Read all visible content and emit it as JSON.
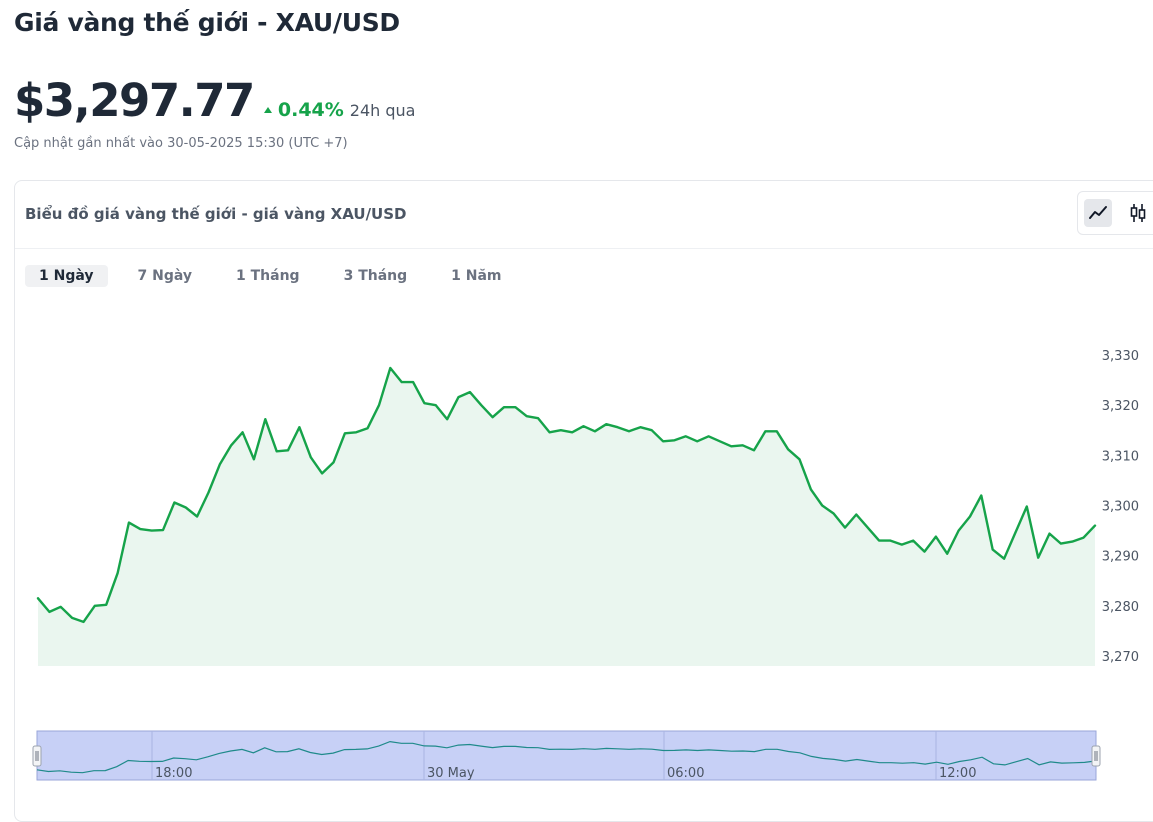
{
  "page": {
    "title": "Giá vàng thế giới - XAU/USD",
    "price": "$3,297.77",
    "change_pct": "0.44%",
    "change_period": "24h qua",
    "updated": "Cập nhật gần nhất vào 30-05-2025 15:30 (UTC +7)"
  },
  "card": {
    "title": "Biểu đồ giá vàng thế giới - giá vàng XAU/USD",
    "view_buttons": [
      {
        "icon": "line-chart-icon",
        "active": true
      },
      {
        "icon": "candlestick-icon",
        "active": false
      }
    ],
    "tabs": [
      {
        "label": "1 Ngày",
        "active": true
      },
      {
        "label": "7 Ngày",
        "active": false
      },
      {
        "label": "1 Tháng",
        "active": false
      },
      {
        "label": "3 Tháng",
        "active": false
      },
      {
        "label": "1 Năm",
        "active": false
      }
    ]
  },
  "colors": {
    "line": "#16a34a",
    "area": "#eaf6ef",
    "navigator_bg": "#c7d0f6",
    "navigator_line": "#1f8a8a",
    "positive": "#16a34a"
  },
  "chart_data": {
    "type": "area",
    "title": "",
    "xlabel": "",
    "ylabel": "",
    "ylim": [
      3270,
      3330
    ],
    "yticks": [
      3270,
      3280,
      3290,
      3300,
      3310,
      3320,
      3330
    ],
    "ytick_labels": [
      "3,270",
      "3,280",
      "3,290",
      "3,300",
      "3,310",
      "3,320",
      "3,330"
    ],
    "navigator_ticks": [
      "18:00",
      "30 May",
      "06:00",
      "12:00"
    ],
    "grid": false,
    "series": [
      {
        "values": [
          3281.7,
          3279.0,
          3280.0,
          3277.8,
          3277.0,
          3280.2,
          3280.4,
          3286.7,
          3296.8,
          3295.5,
          3295.2,
          3295.3,
          3300.8,
          3299.8,
          3298.0,
          3302.8,
          3308.4,
          3312.2,
          3314.8,
          3309.4,
          3317.4,
          3311.0,
          3311.2,
          3315.8,
          3309.8,
          3306.6,
          3308.8,
          3314.6,
          3314.8,
          3315.6,
          3320.2,
          3327.6,
          3324.8,
          3324.8,
          3320.6,
          3320.2,
          3317.4,
          3321.8,
          3322.8,
          3320.2,
          3317.8,
          3319.8,
          3319.8,
          3318.0,
          3317.6,
          3314.8,
          3315.2,
          3314.8,
          3316.0,
          3315.0,
          3316.4,
          3315.8,
          3315.0,
          3315.8,
          3315.2,
          3313.0,
          3313.2,
          3314.0,
          3313.0,
          3314.0,
          3313.0,
          3312.0,
          3312.2,
          3311.2,
          3315.0,
          3315.0,
          3311.4,
          3309.4,
          3303.4,
          3300.2,
          3298.6,
          3295.8,
          3298.4,
          3295.8,
          3293.2,
          3293.2,
          3292.4,
          3293.2,
          3291.0,
          3294.0,
          3290.6,
          3295.2,
          3298.0,
          3302.2,
          3291.4,
          3289.6,
          3294.8,
          3300.0,
          3289.8,
          3294.6,
          3292.6,
          3293.0,
          3293.8,
          3296.2
        ]
      }
    ]
  }
}
